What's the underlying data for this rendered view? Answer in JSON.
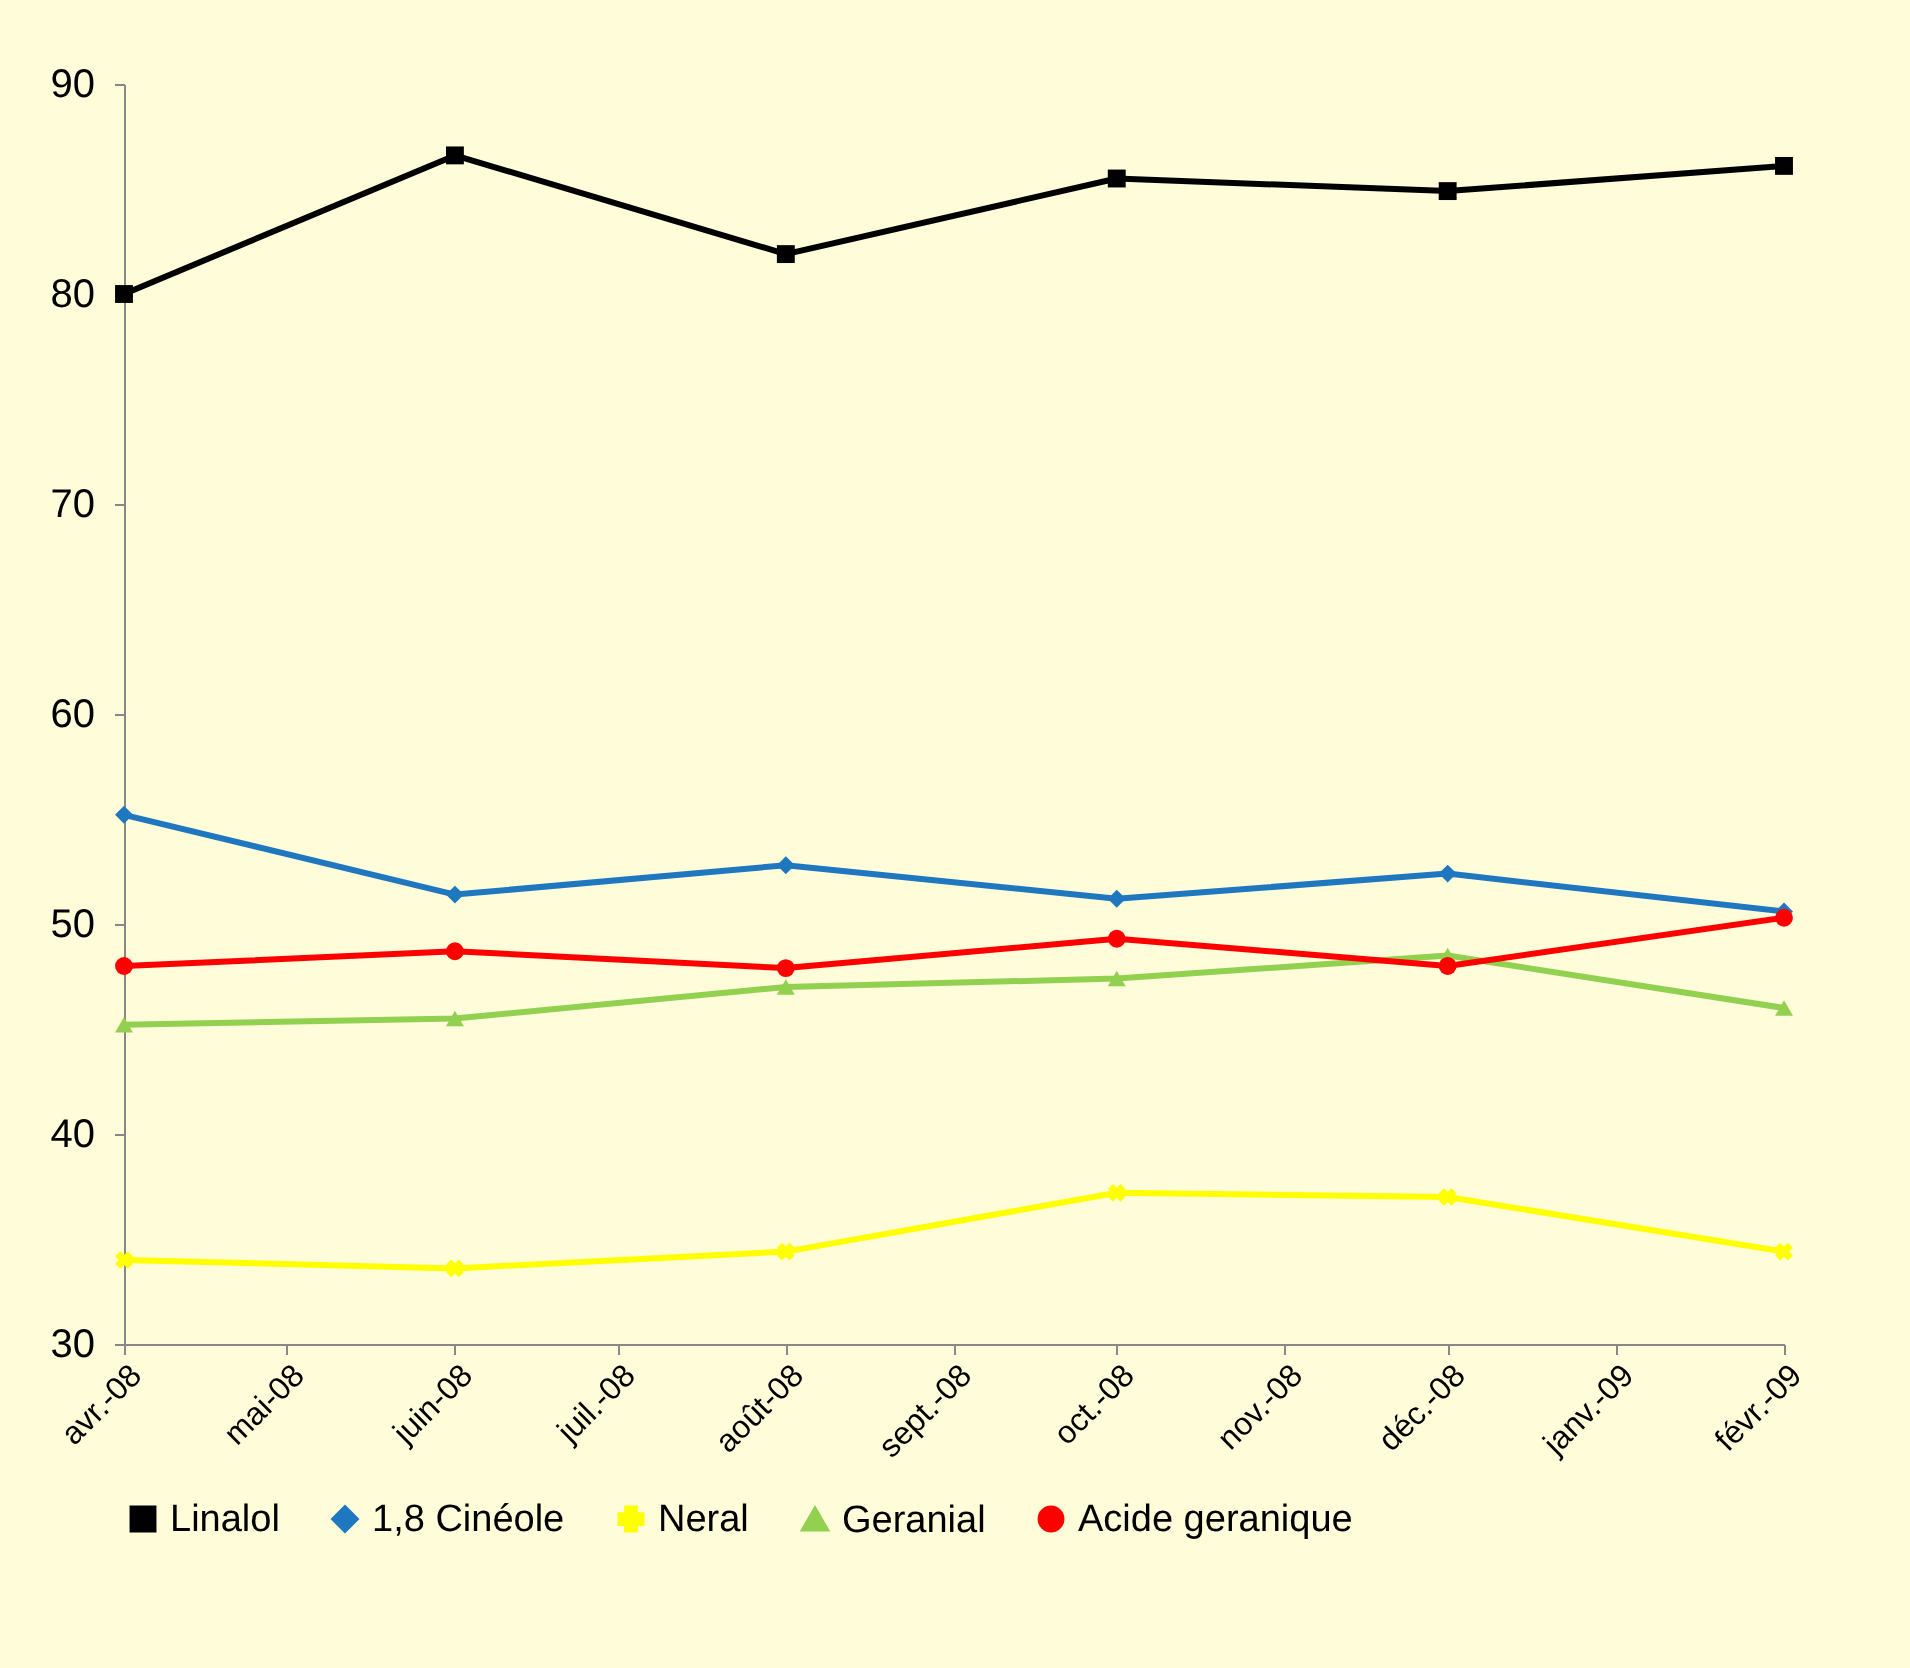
{
  "chart_data": {
    "type": "line",
    "x": [
      "2008-04",
      "2008-06",
      "2008-08",
      "2008-10",
      "2008-12",
      "2009-02"
    ],
    "xlim": [
      "2008-04",
      "2009-02"
    ],
    "xticks": [
      {
        "value": "2008-04",
        "label": "avr.-08"
      },
      {
        "value": "2008-05",
        "label": "mai-08"
      },
      {
        "value": "2008-06",
        "label": "juin-08"
      },
      {
        "value": "2008-07",
        "label": "juil.-08"
      },
      {
        "value": "2008-08",
        "label": "août-08"
      },
      {
        "value": "2008-09",
        "label": "sept.-08"
      },
      {
        "value": "2008-10",
        "label": "oct.-08"
      },
      {
        "value": "2008-11",
        "label": "nov.-08"
      },
      {
        "value": "2008-12",
        "label": "déc.-08"
      },
      {
        "value": "2009-01",
        "label": "janv.-09"
      },
      {
        "value": "2009-02",
        "label": "févr.-09"
      }
    ],
    "ylim": [
      30,
      90
    ],
    "yticks": [
      30,
      40,
      50,
      60,
      70,
      80,
      90
    ],
    "grid": false,
    "legend": "bottom",
    "series": [
      {
        "name": "Linalol",
        "color": "#000000",
        "marker": "square",
        "values": [
          80.0,
          86.6,
          81.9,
          85.5,
          84.9,
          86.1
        ]
      },
      {
        "name": "1,8 Cinéole",
        "color": "#1f77c0",
        "marker": "diamond",
        "values": [
          55.2,
          51.4,
          52.8,
          51.2,
          52.4,
          50.6
        ]
      },
      {
        "name": "Neral",
        "color": "#ffff00",
        "marker": "cross",
        "values": [
          34.0,
          33.6,
          34.4,
          37.2,
          37.0,
          34.4
        ]
      },
      {
        "name": "Geranial",
        "color": "#92d050",
        "marker": "triangle",
        "values": [
          45.2,
          45.5,
          47.0,
          47.4,
          48.5,
          46.0
        ]
      },
      {
        "name": "Acide geranique",
        "color": "#ff0000",
        "marker": "circle",
        "values": [
          48.0,
          48.7,
          47.9,
          49.3,
          48.0,
          50.3
        ]
      }
    ]
  }
}
